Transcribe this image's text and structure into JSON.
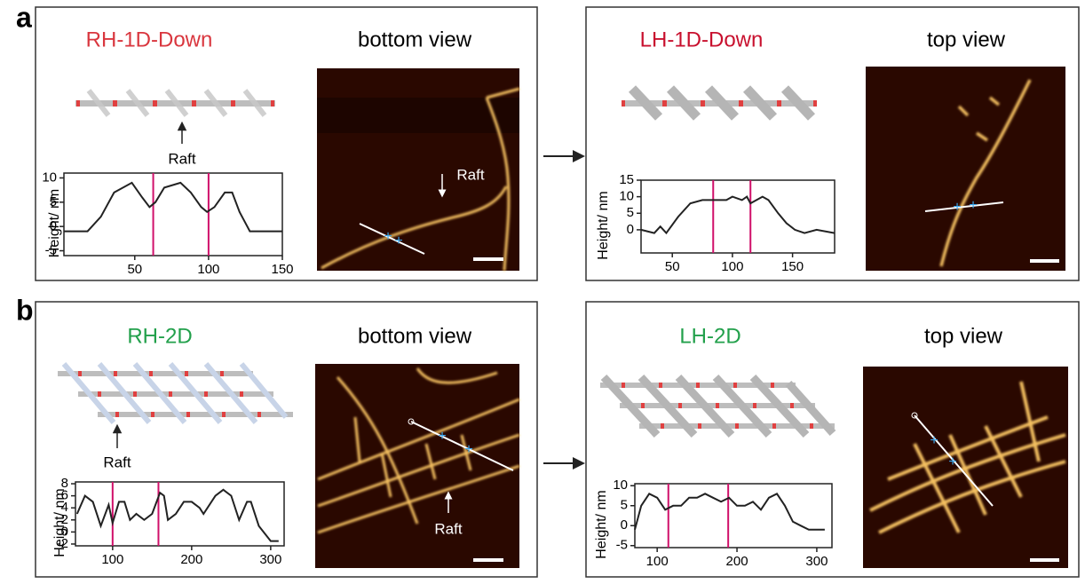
{
  "figure": {
    "labels": [
      "a",
      "b"
    ],
    "panels": [
      {
        "title": "RH-1D-Down",
        "title_color": "#d9363e",
        "view": "bottom view",
        "notes": [
          "Raft",
          "Raft"
        ]
      },
      {
        "title": "LH-1D-Down",
        "title_color": "#c8102e",
        "view": "top view"
      },
      {
        "title": "RH-2D",
        "title_color": "#22a04b",
        "view": "bottom view",
        "notes": [
          "Raft",
          "Raft"
        ]
      },
      {
        "title": "LH-2D",
        "title_color": "#22a04b",
        "view": "top view"
      }
    ]
  },
  "chart_data": [
    {
      "type": "line",
      "ylabel": "Height/ nm",
      "color": "#222222",
      "vline_color": "#d0106a",
      "x": [
        2,
        10,
        18,
        27,
        36,
        48,
        55,
        60,
        64,
        70,
        81,
        88,
        95,
        99,
        104,
        111,
        116,
        121,
        128,
        135,
        150
      ],
      "values": [
        -1,
        -1,
        -1,
        2,
        7,
        9,
        6,
        4,
        5,
        8,
        9,
        7,
        4,
        3,
        4,
        7,
        7,
        3,
        -1,
        -1,
        -1
      ],
      "vlines": [
        62.5,
        100
      ],
      "xlim": [
        2,
        150
      ],
      "ylim": [
        -6,
        11
      ],
      "xticks": [
        50,
        100,
        150
      ],
      "yticks": [
        -5,
        0,
        5,
        10
      ]
    },
    {
      "type": "line",
      "ylabel": "Height/ nm",
      "color": "#222222",
      "vline_color": "#d0106a",
      "x": [
        24,
        35,
        40,
        45,
        55,
        65,
        75,
        85,
        95,
        100,
        108,
        112,
        115,
        125,
        130,
        138,
        145,
        152,
        160,
        170,
        185
      ],
      "values": [
        0,
        -1,
        1,
        -1,
        4,
        8,
        9,
        9,
        9,
        10,
        9,
        10,
        8,
        10,
        9,
        5,
        2,
        0,
        -1,
        0,
        -1
      ],
      "vlines": [
        84,
        115
      ],
      "xlim": [
        24,
        185
      ],
      "ylim": [
        -7,
        15
      ],
      "xticks": [
        50,
        100,
        150
      ],
      "yticks": [
        0,
        5,
        10,
        15
      ]
    },
    {
      "type": "line",
      "ylabel": "Height/ nm",
      "color": "#222222",
      "vline_color": "#d0106a",
      "x": [
        55,
        65,
        75,
        85,
        95,
        100,
        108,
        115,
        122,
        130,
        140,
        150,
        160,
        165,
        170,
        180,
        190,
        200,
        210,
        215,
        230,
        240,
        250,
        260,
        270,
        275,
        285,
        300,
        310
      ],
      "values": [
        3,
        6,
        5,
        1,
        4.5,
        1.5,
        5,
        5,
        2,
        3,
        2,
        3,
        6.5,
        6,
        2,
        3,
        5,
        5,
        4,
        3,
        6,
        7,
        6,
        2,
        5,
        5,
        1,
        -1.5,
        -1.5
      ],
      "vlines": [
        100,
        158
      ],
      "xlim": [
        53,
        317
      ],
      "ylim": [
        -2.3,
        8.3
      ],
      "xticks": [
        100,
        200,
        300
      ],
      "yticks": [
        -2,
        0,
        2,
        4,
        6,
        8
      ]
    },
    {
      "type": "line",
      "ylabel": "Height/ nm",
      "color": "#222222",
      "vline_color": "#d0106a",
      "x": [
        72,
        80,
        90,
        100,
        110,
        120,
        130,
        140,
        150,
        160,
        170,
        180,
        190,
        200,
        210,
        220,
        230,
        240,
        250,
        260,
        270,
        280,
        290,
        310
      ],
      "values": [
        -1,
        5,
        8,
        7,
        4,
        5,
        5,
        7,
        7,
        8,
        7,
        6,
        7,
        5,
        5,
        6,
        4,
        7,
        8,
        5,
        1,
        0,
        -1,
        -1
      ],
      "vlines": [
        114,
        189
      ],
      "xlim": [
        72,
        319
      ],
      "ylim": [
        -5.5,
        10.5
      ],
      "xticks": [
        100,
        200,
        300
      ],
      "yticks": [
        -5,
        0,
        5,
        10
      ]
    }
  ]
}
